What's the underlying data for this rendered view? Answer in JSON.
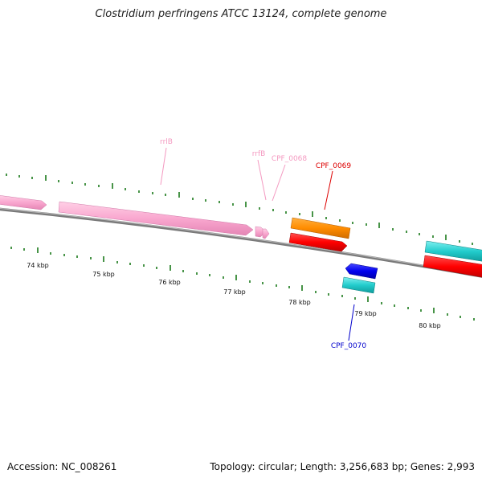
{
  "header": {
    "title": "Clostridium perfringens ATCC 13124, complete genome"
  },
  "footer": {
    "accession": "Accession: NC_008261",
    "summary": "Topology: circular; Length: 3,256,683 bp; Genes: 2,993"
  },
  "axis": {
    "unit": "kbp",
    "ticks": [
      {
        "kbp": 74,
        "label": "74 kbp"
      },
      {
        "kbp": 75,
        "label": "75 kbp"
      },
      {
        "kbp": 76,
        "label": "76 kbp"
      },
      {
        "kbp": 77,
        "label": "77 kbp"
      },
      {
        "kbp": 78,
        "label": "78 kbp"
      },
      {
        "kbp": 79,
        "label": "79 kbp"
      },
      {
        "kbp": 80,
        "label": "80 kbp"
      }
    ]
  },
  "gene_labels": [
    {
      "text": "rrlB",
      "color": "#f49ac1"
    },
    {
      "text": "rrfB",
      "color": "#f49ac1"
    },
    {
      "text": "CPF_0068",
      "color": "#f49ac1"
    },
    {
      "text": "CPF_0069",
      "color": "#dd0000"
    },
    {
      "text": "CPF_0070",
      "color": "#0000cc"
    }
  ],
  "colors": {
    "rRNA": "#f9a7cf",
    "orange_feature": "#ff8c00",
    "red_feature": "#ff0000",
    "cyan_feature": "#22cccc",
    "blue_feature": "#0000ee",
    "backbone": "#7a7a7a",
    "ticks": "#1a7a1a"
  }
}
